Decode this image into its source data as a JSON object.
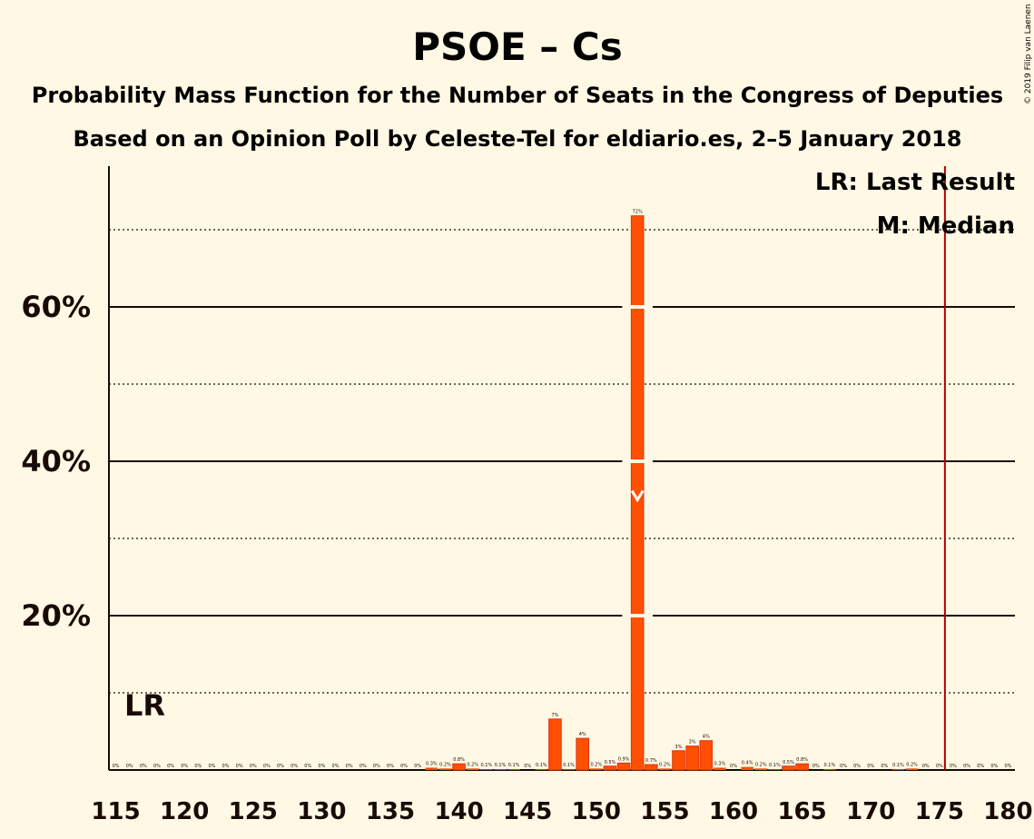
{
  "copyright": "© 2019 Filip van Laenen",
  "colors": {
    "background": "#fff8e4",
    "bar": "#ff4f00",
    "bar_dark": "#e5300f",
    "last_result_line": "#b00000",
    "axis": "#1a0a05"
  },
  "chart_data": {
    "type": "bar",
    "title": "PSOE – Cs",
    "subtitle": "Probability Mass Function for the Number of Seats in the Congress of Deputies",
    "subtitle2": "Based on an Opinion Poll by Celeste-Tel for eldiario.es, 2–5 January 2018",
    "xlim": [
      115,
      180
    ],
    "ylim": [
      0,
      78
    ],
    "yticks": [
      {
        "value": 20,
        "label": "20%"
      },
      {
        "value": 40,
        "label": "40%"
      },
      {
        "value": 60,
        "label": "60%"
      }
    ],
    "ygrid_dotted": [
      10,
      30,
      50,
      70
    ],
    "xticks": [
      {
        "value": 115,
        "label": "115"
      },
      {
        "value": 120,
        "label": "120"
      },
      {
        "value": 125,
        "label": "125"
      },
      {
        "value": 130,
        "label": "130"
      },
      {
        "value": 135,
        "label": "135"
      },
      {
        "value": 140,
        "label": "140"
      },
      {
        "value": 145,
        "label": "145"
      },
      {
        "value": 150,
        "label": "150"
      },
      {
        "value": 155,
        "label": "155"
      },
      {
        "value": 160,
        "label": "160"
      },
      {
        "value": 165,
        "label": "165"
      },
      {
        "value": 170,
        "label": "170"
      },
      {
        "value": 175,
        "label": "175"
      },
      {
        "value": 180,
        "label": "180"
      }
    ],
    "bars": [
      {
        "seats": 115,
        "value": 0,
        "label": "0%"
      },
      {
        "seats": 116,
        "value": 0,
        "label": "0%"
      },
      {
        "seats": 117,
        "value": 0,
        "label": "0%"
      },
      {
        "seats": 118,
        "value": 0,
        "label": "0%"
      },
      {
        "seats": 119,
        "value": 0,
        "label": "0%"
      },
      {
        "seats": 120,
        "value": 0,
        "label": "0%"
      },
      {
        "seats": 121,
        "value": 0,
        "label": "0%"
      },
      {
        "seats": 122,
        "value": 0,
        "label": "0%"
      },
      {
        "seats": 123,
        "value": 0,
        "label": "0%"
      },
      {
        "seats": 124,
        "value": 0,
        "label": "0%"
      },
      {
        "seats": 125,
        "value": 0,
        "label": "0%"
      },
      {
        "seats": 126,
        "value": 0,
        "label": "0%"
      },
      {
        "seats": 127,
        "value": 0,
        "label": "0%"
      },
      {
        "seats": 128,
        "value": 0,
        "label": "0%"
      },
      {
        "seats": 129,
        "value": 0,
        "label": "0%"
      },
      {
        "seats": 130,
        "value": 0,
        "label": "0%"
      },
      {
        "seats": 131,
        "value": 0,
        "label": "0%"
      },
      {
        "seats": 132,
        "value": 0,
        "label": "0%"
      },
      {
        "seats": 133,
        "value": 0,
        "label": "0%"
      },
      {
        "seats": 134,
        "value": 0,
        "label": "0%"
      },
      {
        "seats": 135,
        "value": 0,
        "label": "0%"
      },
      {
        "seats": 136,
        "value": 0,
        "label": "0%"
      },
      {
        "seats": 137,
        "value": 0,
        "label": "0%"
      },
      {
        "seats": 138,
        "value": 0.3,
        "label": "0.3%"
      },
      {
        "seats": 139,
        "value": 0.2,
        "label": "0.2%"
      },
      {
        "seats": 140,
        "value": 0.8,
        "label": "0.8%"
      },
      {
        "seats": 141,
        "value": 0.2,
        "label": "0.2%"
      },
      {
        "seats": 142,
        "value": 0.1,
        "label": "0.1%"
      },
      {
        "seats": 143,
        "value": 0.1,
        "label": "0.1%"
      },
      {
        "seats": 144,
        "value": 0.1,
        "label": "0.1%"
      },
      {
        "seats": 145,
        "value": 0,
        "label": "0%"
      },
      {
        "seats": 146,
        "value": 0.1,
        "label": "0.1%"
      },
      {
        "seats": 147,
        "value": 6.6,
        "label": "7%"
      },
      {
        "seats": 148,
        "value": 0.1,
        "label": "0.1%"
      },
      {
        "seats": 149,
        "value": 4.1,
        "label": "4%"
      },
      {
        "seats": 150,
        "value": 0.2,
        "label": "0.2%"
      },
      {
        "seats": 151,
        "value": 0.5,
        "label": "0.5%"
      },
      {
        "seats": 152,
        "value": 0.9,
        "label": "0.9%"
      },
      {
        "seats": 153,
        "value": 71.8,
        "label": "72%"
      },
      {
        "seats": 154,
        "value": 0.7,
        "label": "0.7%"
      },
      {
        "seats": 155,
        "value": 0.2,
        "label": "0.2%"
      },
      {
        "seats": 156,
        "value": 2.5,
        "label": "3%"
      },
      {
        "seats": 157,
        "value": 3.1,
        "label": "3%"
      },
      {
        "seats": 158,
        "value": 3.8,
        "label": "4%"
      },
      {
        "seats": 159,
        "value": 0.3,
        "label": "0.3%"
      },
      {
        "seats": 160,
        "value": 0,
        "label": "0%"
      },
      {
        "seats": 161,
        "value": 0.4,
        "label": "0.4%"
      },
      {
        "seats": 162,
        "value": 0.2,
        "label": "0.2%"
      },
      {
        "seats": 163,
        "value": 0.1,
        "label": "0.1%"
      },
      {
        "seats": 164,
        "value": 0.5,
        "label": "0.5%"
      },
      {
        "seats": 165,
        "value": 0.8,
        "label": "0.8%"
      },
      {
        "seats": 166,
        "value": 0,
        "label": "0%"
      },
      {
        "seats": 167,
        "value": 0.1,
        "label": "0.1%"
      },
      {
        "seats": 168,
        "value": 0,
        "label": "0%"
      },
      {
        "seats": 169,
        "value": 0,
        "label": "0%"
      },
      {
        "seats": 170,
        "value": 0,
        "label": "0%"
      },
      {
        "seats": 171,
        "value": 0,
        "label": "0%"
      },
      {
        "seats": 172,
        "value": 0.1,
        "label": "0.1%"
      },
      {
        "seats": 173,
        "value": 0.2,
        "label": "0.2%"
      },
      {
        "seats": 174,
        "value": 0,
        "label": "0%"
      },
      {
        "seats": 175,
        "value": 0,
        "label": "0%"
      },
      {
        "seats": 176,
        "value": 0,
        "label": "0%"
      },
      {
        "seats": 177,
        "value": 0,
        "label": "0%"
      },
      {
        "seats": 178,
        "value": 0,
        "label": "0%"
      },
      {
        "seats": 179,
        "value": 0,
        "label": "0%"
      },
      {
        "seats": 180,
        "value": 0,
        "label": "0%"
      }
    ],
    "median": {
      "seats": 153,
      "value": 35
    },
    "last_result": {
      "seats": 176
    },
    "last_result_marker_text": "LR",
    "legend": {
      "position": "top-right",
      "lr": "LR: Last Result",
      "m": "M: Median"
    }
  }
}
